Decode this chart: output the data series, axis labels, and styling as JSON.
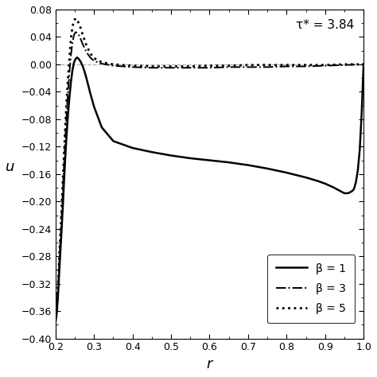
{
  "xlim": [
    0.2,
    1.0
  ],
  "ylim": [
    -0.4,
    0.08
  ],
  "xlabel": "r",
  "ylabel": "u",
  "annotation": "τ* = 3.84",
  "yticks": [
    -0.4,
    -0.36,
    -0.32,
    -0.28,
    -0.24,
    -0.2,
    -0.16,
    -0.12,
    -0.08,
    -0.04,
    0.0,
    0.04,
    0.08
  ],
  "xticks": [
    0.2,
    0.3,
    0.4,
    0.5,
    0.6,
    0.7,
    0.8,
    0.9,
    1.0
  ],
  "legend_labels": [
    "β = 1",
    "β = 3",
    "β = 5"
  ],
  "hline_y": 0.0,
  "hline_color": "#b0b0b0",
  "curve_color": "#000000",
  "background_color": "#ffffff",
  "beta1_r": [
    0.2,
    0.202,
    0.204,
    0.206,
    0.208,
    0.21,
    0.213,
    0.216,
    0.219,
    0.222,
    0.225,
    0.228,
    0.232,
    0.236,
    0.24,
    0.244,
    0.248,
    0.252,
    0.256,
    0.26,
    0.265,
    0.27,
    0.275,
    0.28,
    0.29,
    0.3,
    0.32,
    0.35,
    0.4,
    0.45,
    0.5,
    0.55,
    0.6,
    0.65,
    0.7,
    0.75,
    0.8,
    0.85,
    0.88,
    0.9,
    0.92,
    0.94,
    0.95,
    0.96,
    0.97,
    0.975,
    0.98,
    0.985,
    0.99,
    0.995,
    1.0
  ],
  "beta1_u": [
    -0.375,
    -0.368,
    -0.356,
    -0.34,
    -0.32,
    -0.298,
    -0.268,
    -0.238,
    -0.205,
    -0.17,
    -0.138,
    -0.108,
    -0.075,
    -0.048,
    -0.025,
    -0.008,
    0.003,
    0.008,
    0.01,
    0.008,
    0.004,
    -0.002,
    -0.01,
    -0.02,
    -0.042,
    -0.062,
    -0.092,
    -0.112,
    -0.122,
    -0.128,
    -0.133,
    -0.137,
    -0.14,
    -0.143,
    -0.147,
    -0.152,
    -0.158,
    -0.165,
    -0.17,
    -0.174,
    -0.179,
    -0.185,
    -0.188,
    -0.188,
    -0.185,
    -0.182,
    -0.172,
    -0.155,
    -0.125,
    -0.072,
    0.0
  ],
  "beta3_r": [
    0.2,
    0.202,
    0.204,
    0.206,
    0.208,
    0.21,
    0.213,
    0.216,
    0.219,
    0.222,
    0.225,
    0.228,
    0.232,
    0.236,
    0.24,
    0.244,
    0.248,
    0.252,
    0.256,
    0.26,
    0.265,
    0.27,
    0.275,
    0.28,
    0.29,
    0.3,
    0.32,
    0.35,
    0.4,
    0.45,
    0.5,
    0.55,
    0.6,
    0.65,
    0.7,
    0.75,
    0.8,
    0.85,
    0.9,
    0.95,
    1.0
  ],
  "beta3_u": [
    -0.37,
    -0.362,
    -0.348,
    -0.33,
    -0.308,
    -0.284,
    -0.252,
    -0.218,
    -0.182,
    -0.145,
    -0.11,
    -0.078,
    -0.042,
    -0.012,
    0.014,
    0.032,
    0.043,
    0.047,
    0.046,
    0.043,
    0.037,
    0.03,
    0.024,
    0.018,
    0.01,
    0.005,
    0.001,
    -0.002,
    -0.004,
    -0.005,
    -0.005,
    -0.005,
    -0.005,
    -0.004,
    -0.004,
    -0.004,
    -0.003,
    -0.003,
    -0.002,
    -0.001,
    0.0
  ],
  "beta5_r": [
    0.2,
    0.202,
    0.204,
    0.206,
    0.208,
    0.21,
    0.213,
    0.216,
    0.219,
    0.222,
    0.225,
    0.228,
    0.232,
    0.236,
    0.24,
    0.244,
    0.248,
    0.252,
    0.256,
    0.26,
    0.265,
    0.27,
    0.275,
    0.28,
    0.29,
    0.3,
    0.32,
    0.35,
    0.4,
    0.45,
    0.5,
    0.55,
    0.6,
    0.65,
    0.7,
    0.75,
    0.8,
    0.85,
    0.9,
    0.95,
    1.0
  ],
  "beta5_u": [
    -0.37,
    -0.36,
    -0.345,
    -0.325,
    -0.302,
    -0.276,
    -0.242,
    -0.206,
    -0.168,
    -0.13,
    -0.093,
    -0.06,
    -0.022,
    0.01,
    0.038,
    0.055,
    0.064,
    0.067,
    0.065,
    0.06,
    0.053,
    0.044,
    0.036,
    0.028,
    0.016,
    0.009,
    0.003,
    0.0,
    -0.002,
    -0.003,
    -0.003,
    -0.003,
    -0.002,
    -0.002,
    -0.001,
    -0.001,
    -0.001,
    -0.001,
    -0.001,
    0.0,
    0.0
  ]
}
